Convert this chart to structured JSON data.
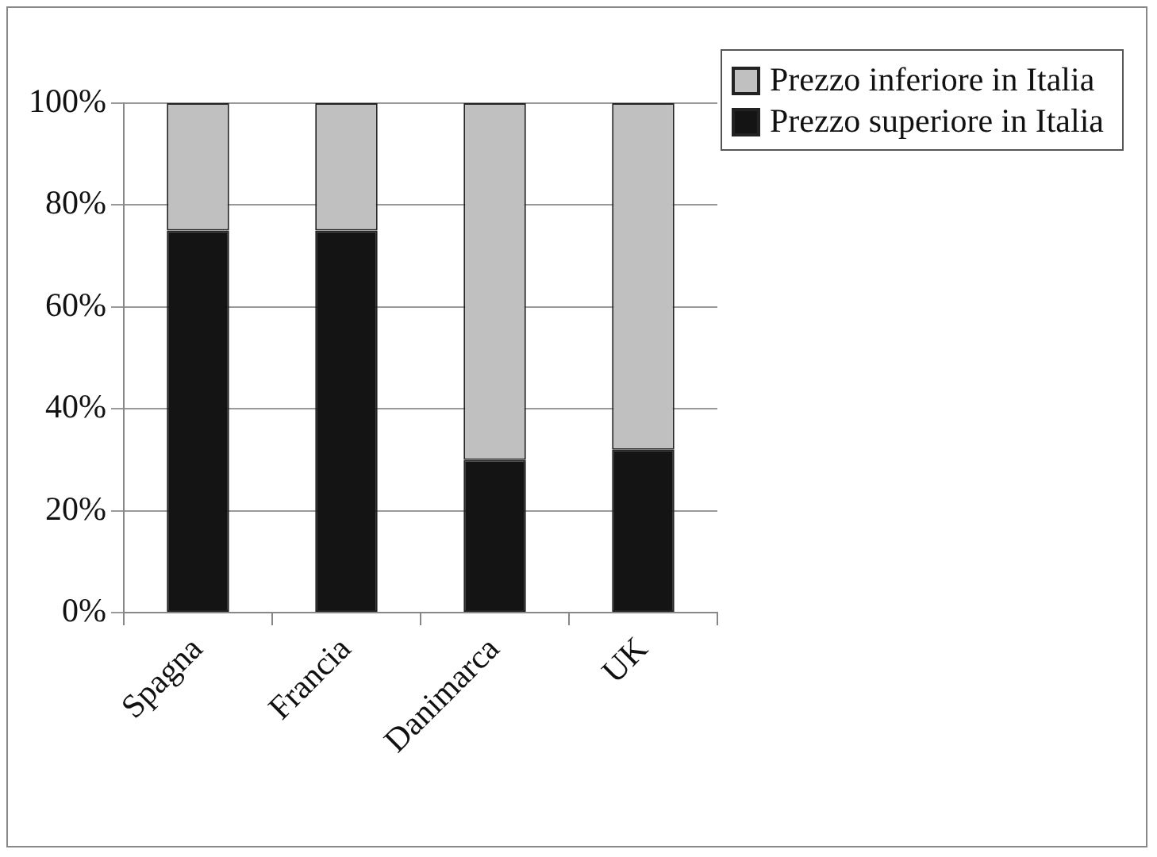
{
  "chart_data": {
    "type": "bar",
    "stacked": true,
    "categories": [
      "Spagna",
      "Francia",
      "Danimarca",
      "UK"
    ],
    "series": [
      {
        "name": "Prezzo superiore in Italia",
        "color": "#141414",
        "values": [
          75,
          75,
          30,
          32
        ]
      },
      {
        "name": "Prezzo inferiore in Italia",
        "color": "#c0c0c0",
        "values": [
          25,
          25,
          70,
          68
        ]
      }
    ],
    "ylim": [
      0,
      100
    ],
    "yticks": [
      {
        "value": 0,
        "label": "0%"
      },
      {
        "value": 20,
        "label": "20%"
      },
      {
        "value": 40,
        "label": "40%"
      },
      {
        "value": 60,
        "label": "60%"
      },
      {
        "value": 80,
        "label": "80%"
      },
      {
        "value": 100,
        "label": "100%"
      }
    ],
    "grid": "y",
    "legend": "top right"
  }
}
